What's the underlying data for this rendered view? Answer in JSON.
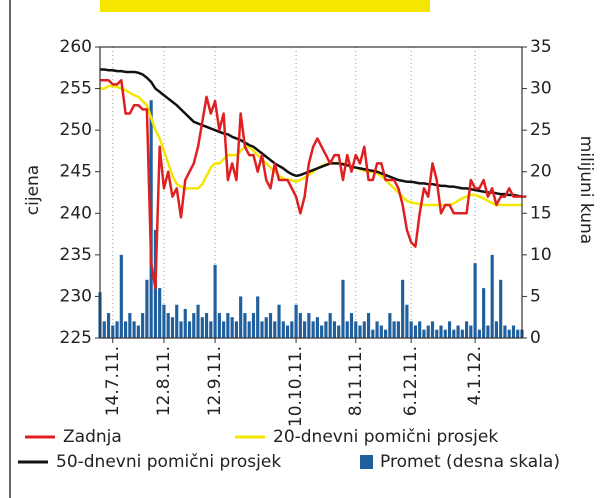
{
  "chart_data": {
    "type": "line",
    "ylabel": "cijena",
    "y2label": "milijuni kuna",
    "xlim": [
      0,
      99
    ],
    "xticks": [
      {
        "value": 3,
        "label": "14.7.11."
      },
      {
        "value": 15,
        "label": "12.8.11."
      },
      {
        "value": 27,
        "label": "12.9.11."
      },
      {
        "value": 46,
        "label": "10.10.11."
      },
      {
        "value": 60,
        "label": "8.11.11."
      },
      {
        "value": 73,
        "label": "6.12.11."
      },
      {
        "value": 88,
        "label": "4.1.12."
      }
    ],
    "ylim": [
      225,
      260
    ],
    "yticks": [
      225,
      230,
      235,
      240,
      245,
      250,
      255,
      260
    ],
    "y2lim": [
      0,
      35
    ],
    "y2ticks": [
      0,
      5,
      10,
      15,
      20,
      25,
      30,
      35
    ],
    "grid": "x",
    "series": [
      {
        "name": "Promet (desna skala)",
        "color": "#1f5f9e",
        "type": "bar",
        "axis": "y2",
        "values": [
          5.5,
          2,
          3,
          1.5,
          2,
          10,
          2,
          3,
          2,
          1.5,
          3,
          7,
          28.6,
          13,
          6,
          4,
          3,
          2.5,
          4,
          2,
          3.5,
          2,
          3,
          4,
          2.5,
          3,
          2,
          8.8,
          3,
          2,
          3,
          2.5,
          2,
          5,
          3,
          2,
          3,
          5,
          2,
          2.5,
          3,
          2,
          4,
          2,
          1.5,
          2,
          4,
          3,
          2,
          3,
          2,
          2.5,
          1.5,
          2,
          3,
          2,
          1.5,
          7,
          2,
          3,
          2,
          1.5,
          2,
          3,
          1,
          2,
          1.5,
          1,
          3,
          2,
          2,
          7,
          4,
          2,
          1.5,
          2,
          1,
          1.5,
          2,
          1,
          1.5,
          1,
          2,
          1,
          1.5,
          1,
          2,
          1.5,
          9,
          1,
          6,
          1.5,
          10,
          2,
          7,
          1.5,
          1,
          1.5,
          1,
          1
        ]
      },
      {
        "name": "20-dnevni pomični prosjek",
        "color": "#f5e600",
        "values": [
          255,
          255,
          255.3,
          255.3,
          255.2,
          255,
          254.8,
          254.5,
          254.2,
          254,
          253.5,
          253,
          251.5,
          250,
          249,
          247.5,
          246,
          244.5,
          243.5,
          243.2,
          243,
          243,
          243,
          243,
          243.5,
          244.5,
          245.5,
          246,
          246,
          246.5,
          247,
          247,
          247,
          247.5,
          248,
          248,
          247.5,
          247,
          246.5,
          246,
          245.5,
          245,
          244.5,
          244.2,
          244,
          244,
          243.8,
          244,
          244.3,
          244.6,
          245,
          245.4,
          245.7,
          245.9,
          246,
          246,
          246,
          246,
          245.8,
          245.6,
          245.5,
          245.3,
          245.1,
          245,
          245,
          244.8,
          244.5,
          244,
          243.5,
          243,
          242.5,
          242,
          241.5,
          241.3,
          241.2,
          241.1,
          241,
          241,
          241,
          241,
          241,
          241,
          241,
          241.2,
          241.5,
          241.8,
          242,
          242.2,
          242.2,
          242,
          241.8,
          241.5,
          241.2,
          241,
          241,
          241,
          241,
          241,
          241,
          241
        ]
      },
      {
        "name": "50-dnevni pomični prosjek",
        "color": "#111111",
        "values": [
          257.3,
          257.3,
          257.2,
          257.2,
          257.1,
          257.1,
          257,
          257,
          257,
          256.9,
          256.7,
          256.3,
          255.8,
          255,
          254.6,
          254.2,
          253.8,
          253.4,
          253,
          252.5,
          252,
          251.5,
          251,
          250.8,
          250.6,
          250.4,
          250.2,
          250,
          249.8,
          249.6,
          249.5,
          249.2,
          249,
          248.8,
          248.5,
          248.2,
          248,
          247.6,
          247.2,
          246.8,
          246.4,
          246,
          245.7,
          245.4,
          245,
          244.7,
          244.5,
          244.6,
          244.8,
          245,
          245.2,
          245.4,
          245.6,
          245.8,
          246,
          246,
          246,
          245.9,
          245.8,
          245.6,
          245.5,
          245.4,
          245.3,
          245.2,
          245.1,
          245,
          244.8,
          244.6,
          244.4,
          244.2,
          244,
          243.9,
          243.8,
          243.8,
          243.7,
          243.6,
          243.6,
          243.5,
          243.5,
          243.4,
          243.3,
          243.3,
          243.2,
          243.2,
          243.1,
          243,
          243,
          242.9,
          242.8,
          242.7,
          242.6,
          242.5,
          242.5,
          242.4,
          242.3,
          242.3,
          242.2,
          242.2,
          242.1,
          242
        ]
      },
      {
        "name": "Zadnja",
        "color": "#e02020",
        "values": [
          256,
          256,
          256,
          255.5,
          255.5,
          256,
          252,
          252,
          253,
          253,
          252.5,
          252.5,
          234,
          231,
          248,
          243,
          245,
          242,
          243,
          239.5,
          244,
          245,
          246,
          248,
          251,
          254,
          252,
          253.5,
          250,
          252,
          244,
          246,
          244,
          252,
          248,
          247,
          247,
          245,
          247,
          244,
          243,
          246,
          244,
          244,
          244,
          243,
          242,
          240,
          242,
          246,
          248,
          249,
          248,
          247,
          246,
          247,
          247,
          244,
          247,
          245,
          247,
          246,
          248,
          244,
          244,
          246,
          246,
          244,
          244,
          244,
          243,
          241,
          238,
          236.5,
          236,
          240,
          243,
          242,
          246,
          244,
          240,
          241,
          241,
          240,
          240,
          240,
          240,
          244,
          243,
          243,
          244,
          242,
          243,
          241,
          242,
          242,
          243,
          242,
          242,
          242,
          242
        ]
      }
    ]
  }
}
